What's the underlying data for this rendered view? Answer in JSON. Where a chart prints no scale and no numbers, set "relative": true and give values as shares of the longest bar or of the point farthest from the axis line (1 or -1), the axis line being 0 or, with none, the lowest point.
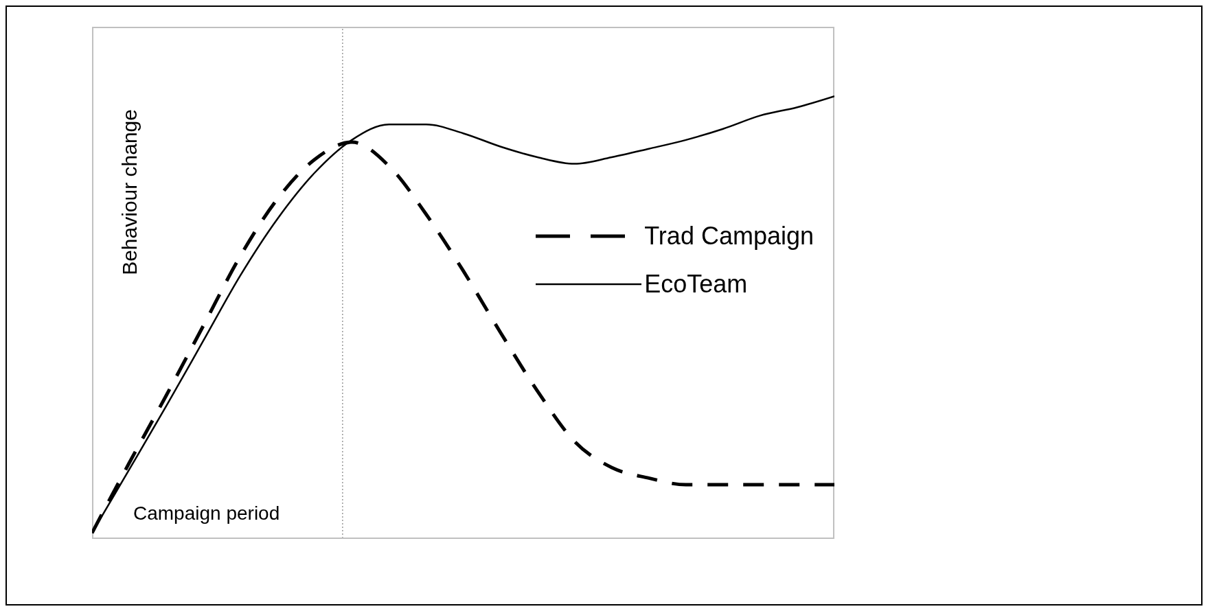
{
  "chart_data": {
    "type": "line",
    "relative": true,
    "ylabel": "Behaviour change",
    "categories": [
      null,
      null,
      null,
      null,
      null,
      null,
      null,
      null,
      null,
      null,
      null,
      null,
      null,
      null,
      null,
      null,
      null,
      null,
      null,
      null,
      null
    ],
    "series": [
      {
        "name": "Trad Campaign",
        "color": "#000000",
        "line_style": "dashed",
        "values": [
          0.012,
          0.17,
          0.323,
          0.481,
          0.639,
          0.768,
          0.857,
          0.896,
          0.842,
          0.733,
          0.605,
          0.466,
          0.333,
          0.219,
          0.16,
          0.136,
          0.121,
          0.121,
          0.121,
          0.121,
          0.121
        ]
      },
      {
        "name": "EcoTeam",
        "color": "#000000",
        "line_style": "solid",
        "values": [
          0.012,
          0.155,
          0.299,
          0.447,
          0.595,
          0.723,
          0.827,
          0.901,
          0.936,
          0.936,
          0.916,
          0.886,
          0.862,
          0.847,
          0.862,
          0.881,
          0.901,
          0.926,
          0.956,
          0.975,
          1
        ]
      }
    ],
    "annotations": [
      "Campaign period"
    ],
    "legend": "top right",
    "grid": false
  }
}
